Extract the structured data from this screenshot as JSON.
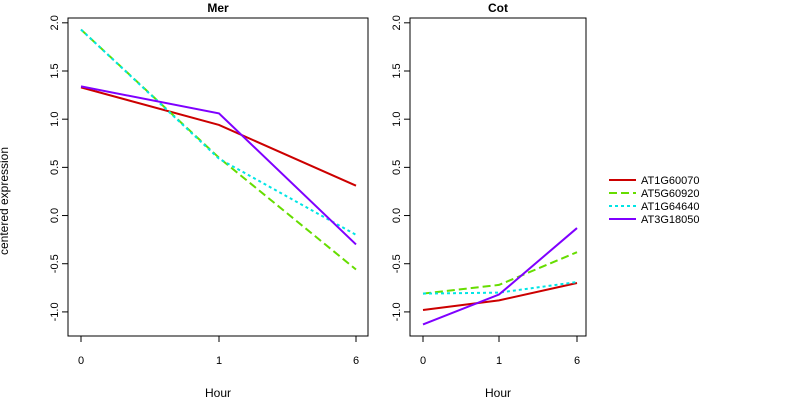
{
  "chart_data": {
    "type": "line",
    "ylabel": "centered expression",
    "legend_position": "right",
    "grid": false,
    "series_styles": [
      {
        "name": "AT1G60070",
        "color": "#cc0000",
        "dash": "solid"
      },
      {
        "name": "AT5G60920",
        "color": "#66dd00",
        "dash": "dashed"
      },
      {
        "name": "AT1G64640",
        "color": "#00e5e5",
        "dash": "dotted"
      },
      {
        "name": "AT3G18050",
        "color": "#7f00ff",
        "dash": "solid"
      }
    ],
    "panels": [
      {
        "title": "Mer",
        "xlabel": "Hour",
        "x": [
          "0",
          "1",
          "6"
        ],
        "ylim": [
          -1.25,
          2.05
        ],
        "yticks": [
          "-1.0",
          "-0.5",
          "0.0",
          "0.5",
          "1.0",
          "1.5",
          "2.0"
        ],
        "series": [
          {
            "name": "AT1G60070",
            "values": [
              1.33,
              0.94,
              0.31
            ]
          },
          {
            "name": "AT5G60920",
            "values": [
              1.93,
              0.6,
              -0.56
            ]
          },
          {
            "name": "AT1G64640",
            "values": [
              1.93,
              0.59,
              -0.2
            ]
          },
          {
            "name": "AT3G18050",
            "values": [
              1.34,
              1.06,
              -0.3
            ]
          }
        ]
      },
      {
        "title": "Cot",
        "xlabel": "Hour",
        "x": [
          "0",
          "1",
          "6"
        ],
        "ylim": [
          -1.25,
          2.05
        ],
        "yticks": [
          "-1.0",
          "-0.5",
          "0.0",
          "0.5",
          "1.0",
          "1.5",
          "2.0"
        ],
        "series": [
          {
            "name": "AT1G60070",
            "values": [
              -0.98,
              -0.88,
              -0.7
            ]
          },
          {
            "name": "AT5G60920",
            "values": [
              -0.81,
              -0.72,
              -0.38
            ]
          },
          {
            "name": "AT1G64640",
            "values": [
              -0.81,
              -0.8,
              -0.69
            ]
          },
          {
            "name": "AT3G18050",
            "values": [
              -1.13,
              -0.82,
              -0.13
            ]
          }
        ]
      }
    ]
  }
}
